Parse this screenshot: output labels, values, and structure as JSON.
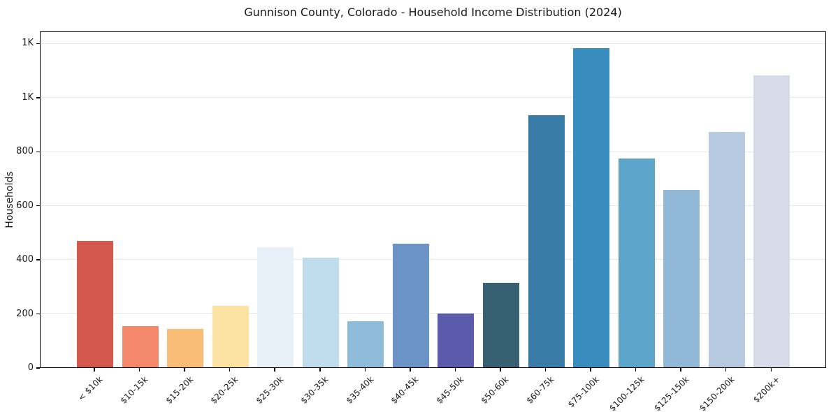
{
  "chart_data": {
    "type": "bar",
    "title": "Gunnison County, Colorado - Household Income Distribution (2024)",
    "xlabel": "",
    "ylabel": "Households",
    "categories": [
      "< $10k",
      "$10-15k",
      "$15-20k",
      "$20-25k",
      "$25-30k",
      "$30-35k",
      "$35-40k",
      "$40-45k",
      "$45-50k",
      "$50-60k",
      "$60-75k",
      "$75-100k",
      "$100-125k",
      "$125-150k",
      "$150-200k",
      "$200k+"
    ],
    "values": [
      470,
      152,
      143,
      228,
      445,
      408,
      170,
      460,
      200,
      315,
      937,
      1185,
      775,
      658,
      873,
      1085
    ],
    "bar_colors": [
      "#d4574e",
      "#f4886b",
      "#fabd77",
      "#fce3a4",
      "#e7f1f7",
      "#bedcec",
      "#90bcdc",
      "#6b93c5",
      "#5a5baa",
      "#386073",
      "#377ba6",
      "#398cbe",
      "#5ca4ca",
      "#92b8d7",
      "#b6c9de",
      "#d7dae8"
    ],
    "ytick_values": [
      0,
      200,
      400,
      600,
      800,
      1000,
      1200
    ],
    "ytick_labels": [
      "0",
      "200",
      "400",
      "600",
      "800",
      "1K",
      "1K"
    ],
    "ylim": [
      0,
      1245
    ],
    "grid": "horizontal",
    "gridline_color": "#e8e8e8",
    "legend": "none",
    "axis_color": "#000000",
    "text_color": "#1a1a1a",
    "background_color": "#ffffff"
  }
}
